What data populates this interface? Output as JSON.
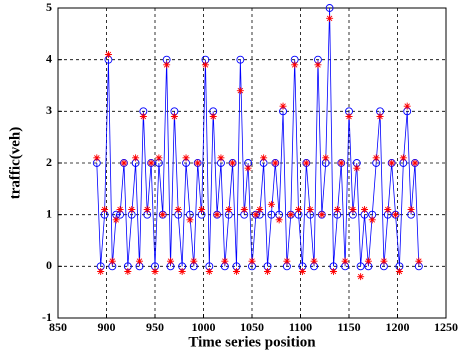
{
  "chart_data": {
    "type": "line",
    "xlabel": "Time series position",
    "ylabel": "traffic(veh)",
    "x": [
      890,
      894,
      898,
      902,
      906,
      910,
      914,
      918,
      922,
      926,
      930,
      934,
      938,
      942,
      946,
      950,
      954,
      958,
      962,
      966,
      970,
      974,
      978,
      982,
      986,
      990,
      994,
      998,
      1002,
      1006,
      1010,
      1014,
      1018,
      1022,
      1026,
      1030,
      1034,
      1038,
      1042,
      1046,
      1050,
      1054,
      1058,
      1062,
      1066,
      1070,
      1074,
      1078,
      1082,
      1086,
      1090,
      1094,
      1098,
      1102,
      1106,
      1110,
      1114,
      1118,
      1122,
      1126,
      1130,
      1134,
      1138,
      1142,
      1146,
      1150,
      1154,
      1158,
      1162,
      1166,
      1170,
      1174,
      1178,
      1182,
      1186,
      1190,
      1194,
      1198,
      1202,
      1206,
      1210,
      1214,
      1218,
      1222
    ],
    "series": [
      {
        "color": "#0000ff",
        "marker": "circle",
        "line": true,
        "values": [
          2,
          0,
          1,
          4,
          0,
          1,
          1,
          2,
          0,
          1,
          2,
          0,
          3,
          1,
          2,
          0,
          2,
          1,
          4,
          0,
          3,
          1,
          0,
          2,
          1,
          0,
          2,
          1,
          4,
          0,
          3,
          1,
          2,
          0,
          1,
          2,
          0,
          4,
          1,
          2,
          0,
          1,
          1,
          2,
          0,
          1,
          2,
          1,
          3,
          0,
          1,
          4,
          1,
          0,
          2,
          1,
          0,
          4,
          1,
          2,
          5,
          0,
          1,
          2,
          0,
          3,
          1,
          2,
          0,
          1,
          0,
          1,
          2,
          3,
          0,
          1,
          2,
          1,
          0,
          2,
          3,
          1,
          2,
          0
        ]
      },
      {
        "color": "#ff0000",
        "marker": "star",
        "line": false,
        "values": [
          2.1,
          -0.1,
          1.1,
          4.1,
          0.1,
          0.9,
          1.1,
          2.0,
          -0.1,
          1.1,
          2.1,
          0.1,
          2.9,
          1.1,
          2.0,
          -0.1,
          2.1,
          1.0,
          3.9,
          0.1,
          2.9,
          1.1,
          -0.1,
          2.1,
          0.9,
          0.1,
          2.0,
          1.1,
          3.9,
          -0.1,
          2.9,
          1.0,
          2.1,
          0.1,
          1.1,
          2.0,
          -0.1,
          3.4,
          1.1,
          1.9,
          0.1,
          1.0,
          1.1,
          2.1,
          -0.1,
          1.2,
          2.0,
          0.9,
          3.1,
          0.1,
          1.0,
          3.9,
          1.1,
          -0.1,
          2.0,
          1.1,
          0.1,
          3.9,
          1.0,
          2.1,
          4.8,
          -0.1,
          1.1,
          2.0,
          0.1,
          2.9,
          1.1,
          1.9,
          -0.2,
          1.1,
          0.1,
          0.9,
          2.1,
          2.9,
          0.1,
          1.1,
          2.0,
          1.0,
          -0.1,
          2.1,
          3.1,
          1.1,
          2.0,
          0.1
        ]
      }
    ],
    "xlim": [
      850,
      1250
    ],
    "xticks": [
      850,
      900,
      950,
      1000,
      1050,
      1100,
      1150,
      1200,
      1250
    ],
    "ylim": [
      -1,
      5
    ],
    "yticks": [
      -1,
      0,
      1,
      2,
      3,
      4,
      5
    ],
    "grid": true
  }
}
